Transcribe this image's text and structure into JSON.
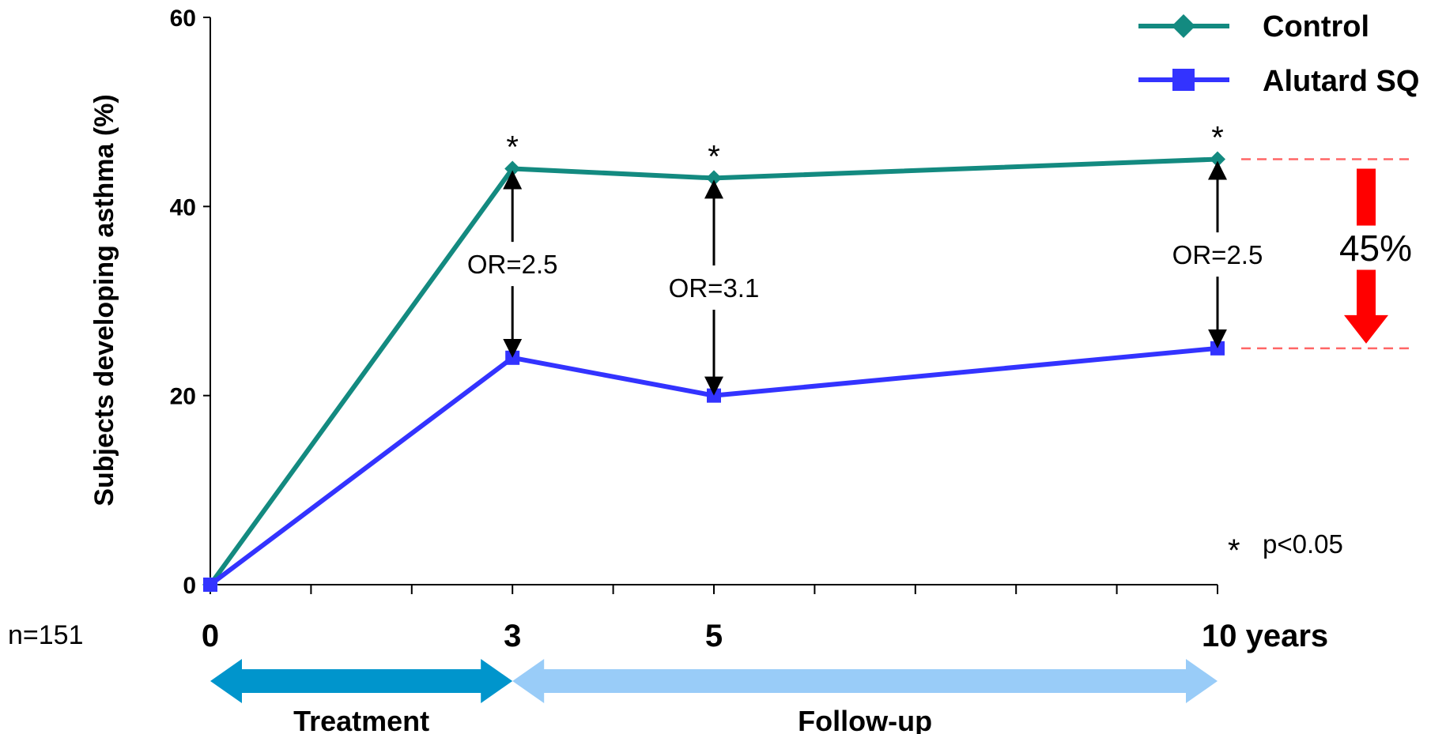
{
  "chart_data": {
    "type": "line",
    "ylabel": "Subjects developing asthma (%)",
    "ylim": [
      0,
      60
    ],
    "y_ticks": [
      "0",
      "20",
      "40",
      "60"
    ],
    "x_tick_labels": [
      "0",
      "3",
      "5",
      "10 years"
    ],
    "x": [
      0,
      3,
      5,
      10
    ],
    "xlim": [
      0,
      10
    ],
    "series": [
      {
        "name": "Control",
        "values": [
          0,
          44,
          43,
          45
        ],
        "color": "#138a80",
        "marker": "diamond"
      },
      {
        "name": "Alutard SQ",
        "values": [
          0,
          24,
          20,
          25
        ],
        "color": "#3333ff",
        "marker": "square"
      }
    ],
    "legend_placement": "top-right",
    "significance_marker": "*",
    "significance_note": "p<0.05",
    "odds_ratios": [
      {
        "x": 3,
        "label": "OR=2.5"
      },
      {
        "x": 5,
        "label": "OR=3.1"
      },
      {
        "x": 10,
        "label": "OR=2.5"
      }
    ],
    "reduction_label": "45%",
    "reduction_color": "#ff0000",
    "sample_size": "n=151",
    "phases": [
      {
        "label": "Treatment",
        "from": 0,
        "to": 3,
        "color": "#0095cc"
      },
      {
        "label": "Follow-up",
        "from": 3,
        "to": 10,
        "color": "#99ccf8"
      }
    ],
    "grid": false
  }
}
